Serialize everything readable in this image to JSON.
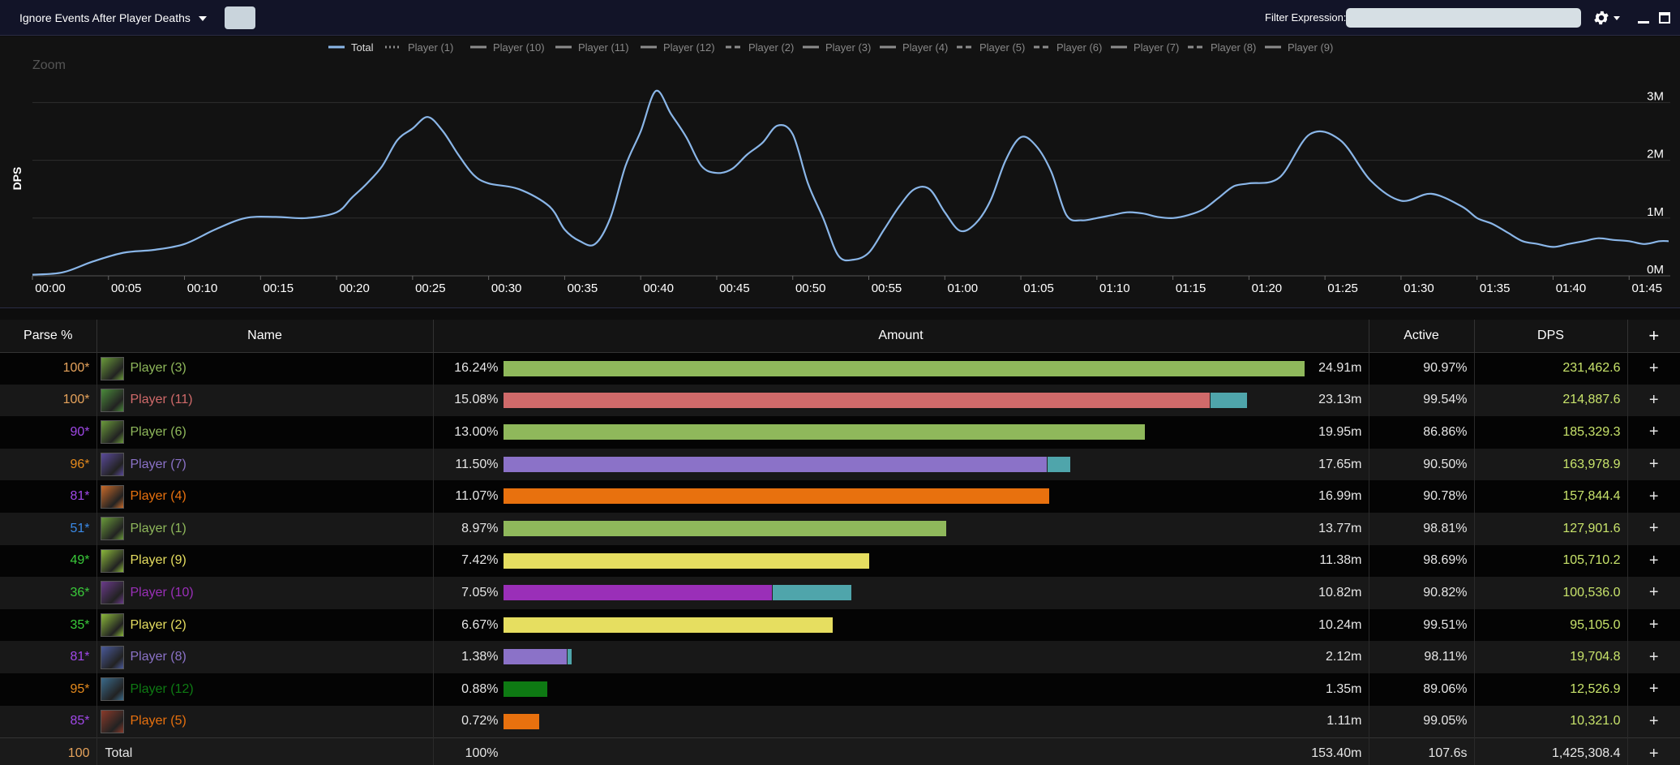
{
  "toolbar": {
    "ignore_label": "Ignore Events After Player Deaths",
    "filter_label": "Filter Expression:",
    "filter_value": ""
  },
  "colors": {
    "hunter": "#8fb85b",
    "deathknight": "#d06a6a",
    "warlock": "#8b72c8",
    "rogue": "#e6de60",
    "druid": "#e8710e",
    "demonhunter": "#9a2fb8",
    "monk": "#0e7a13",
    "pet": "#4fa5ab",
    "total_line": "#8ab6e8",
    "legend_gray": "#8c8c8c"
  },
  "chart_data": {
    "type": "line",
    "ylabel": "DPS",
    "zoom_label": "Zoom",
    "legend": [
      "Total",
      "Player (1)",
      "Player (10)",
      "Player (11)",
      "Player (12)",
      "Player (2)",
      "Player (3)",
      "Player (4)",
      "Player (5)",
      "Player (6)",
      "Player (7)",
      "Player (8)",
      "Player (9)"
    ],
    "x_ticks": [
      "00:00",
      "00:05",
      "00:10",
      "00:15",
      "00:20",
      "00:25",
      "00:30",
      "00:35",
      "00:40",
      "00:45",
      "00:50",
      "00:55",
      "01:00",
      "01:05",
      "01:10",
      "01:15",
      "01:20",
      "01:25",
      "01:30",
      "01:35",
      "01:40",
      "01:45"
    ],
    "y_ticks": [
      "0M",
      "1M",
      "2M",
      "3M"
    ],
    "ylim": [
      0,
      3.3
    ],
    "xlim": [
      0,
      107.6
    ],
    "series": [
      {
        "name": "Total",
        "x": [
          0,
          2,
          4,
          6,
          8,
          10,
          12,
          14,
          16,
          18,
          20,
          21,
          22,
          23,
          24,
          25,
          26,
          27,
          28,
          29,
          30,
          32,
          34,
          35,
          36,
          37,
          38,
          39,
          40,
          41,
          42,
          43,
          44,
          45,
          46,
          47,
          48,
          49,
          50,
          51,
          52,
          53,
          54,
          55,
          56,
          57,
          58,
          59,
          60,
          61,
          62,
          63,
          64,
          65,
          66,
          67,
          68,
          69,
          70,
          71,
          72,
          73,
          74,
          75,
          76,
          77,
          78,
          79,
          80,
          82,
          84,
          86,
          88,
          90,
          92,
          94,
          95,
          96,
          97,
          98,
          99,
          100,
          101,
          102,
          103,
          104,
          105,
          106,
          107,
          107.6
        ],
        "values": [
          0.02,
          0.06,
          0.25,
          0.4,
          0.45,
          0.55,
          0.8,
          1.0,
          1.02,
          1.0,
          1.1,
          1.35,
          1.6,
          1.9,
          2.35,
          2.55,
          2.75,
          2.5,
          2.1,
          1.75,
          1.6,
          1.5,
          1.2,
          0.8,
          0.6,
          0.55,
          1.0,
          1.9,
          2.5,
          3.2,
          2.8,
          2.4,
          1.9,
          1.78,
          1.85,
          2.1,
          2.3,
          2.6,
          2.45,
          1.6,
          1.0,
          0.35,
          0.28,
          0.4,
          0.8,
          1.2,
          1.5,
          1.5,
          1.1,
          0.78,
          0.9,
          1.3,
          2.0,
          2.4,
          2.25,
          1.8,
          1.05,
          0.96,
          1.0,
          1.05,
          1.1,
          1.08,
          1.02,
          1.0,
          1.05,
          1.15,
          1.35,
          1.55,
          1.6,
          1.7,
          2.45,
          2.35,
          1.65,
          1.3,
          1.42,
          1.2,
          1.0,
          0.9,
          0.75,
          0.6,
          0.55,
          0.5,
          0.55,
          0.6,
          0.65,
          0.62,
          0.6,
          0.55,
          0.6,
          0.6
        ]
      }
    ]
  },
  "table": {
    "headers": {
      "parse": "Parse %",
      "name": "Name",
      "amount": "Amount",
      "active": "Active",
      "dps": "DPS",
      "plus": "+"
    },
    "rows": [
      {
        "parse": "100*",
        "parse_color": "#e5a25b",
        "name": "Player (3)",
        "name_color": "#8fb85b",
        "icon": "hunter-spec-icon",
        "icon_color": "#6a9a3a",
        "pct": "16.24%",
        "main_frac": 0.1624,
        "pet_frac": 0,
        "bar_color": "#8fb85b",
        "amount": "24.91m",
        "active": "90.97%",
        "dps": "231,462.6"
      },
      {
        "parse": "100*",
        "parse_color": "#e5a25b",
        "name": "Player (11)",
        "name_color": "#d06a6a",
        "icon": "deathknight-spec-icon",
        "icon_color": "#4a8a3a",
        "pct": "15.08%",
        "main_frac": 0.1432,
        "pet_frac": 0.0076,
        "bar_color": "#d06a6a",
        "amount": "23.13m",
        "active": "99.54%",
        "dps": "214,887.6"
      },
      {
        "parse": "90*",
        "parse_color": "#a048e8",
        "name": "Player (6)",
        "name_color": "#8fb85b",
        "icon": "hunter-spec-icon",
        "icon_color": "#6a9a3a",
        "pct": "13.00%",
        "main_frac": 0.13,
        "pet_frac": 0,
        "bar_color": "#8fb85b",
        "amount": "19.95m",
        "active": "86.86%",
        "dps": "185,329.3"
      },
      {
        "parse": "96*",
        "parse_color": "#e58a1d",
        "name": "Player (7)",
        "name_color": "#8b72c8",
        "icon": "warlock-spec-icon",
        "icon_color": "#5a4a9a",
        "pct": "11.50%",
        "main_frac": 0.1102,
        "pet_frac": 0.0048,
        "bar_color": "#8b72c8",
        "amount": "17.65m",
        "active": "90.50%",
        "dps": "163,978.9"
      },
      {
        "parse": "81*",
        "parse_color": "#a048e8",
        "name": "Player (4)",
        "name_color": "#e8710e",
        "icon": "druid-spec-icon",
        "icon_color": "#c86a2a",
        "pct": "11.07%",
        "main_frac": 0.1107,
        "pet_frac": 0,
        "bar_color": "#e8710e",
        "amount": "16.99m",
        "active": "90.78%",
        "dps": "157,844.4"
      },
      {
        "parse": "51*",
        "parse_color": "#3a8ae8",
        "name": "Player (1)",
        "name_color": "#8fb85b",
        "icon": "hunter-spec-icon",
        "icon_color": "#6a9a3a",
        "pct": "8.97%",
        "main_frac": 0.0897,
        "pet_frac": 0,
        "bar_color": "#8fb85b",
        "amount": "13.77m",
        "active": "98.81%",
        "dps": "127,901.6"
      },
      {
        "parse": "49*",
        "parse_color": "#3acb3a",
        "name": "Player (9)",
        "name_color": "#e6de60",
        "icon": "rogue-spec-icon",
        "icon_color": "#8ab83a",
        "pct": "7.42%",
        "main_frac": 0.0742,
        "pet_frac": 0,
        "bar_color": "#e6de60",
        "amount": "11.38m",
        "active": "98.69%",
        "dps": "105,710.2"
      },
      {
        "parse": "36*",
        "parse_color": "#3acb3a",
        "name": "Player (10)",
        "name_color": "#9a2fb8",
        "icon": "demonhunter-spec-icon",
        "icon_color": "#6a3a8a",
        "pct": "7.05%",
        "main_frac": 0.0544,
        "pet_frac": 0.0161,
        "bar_color": "#9a2fb8",
        "amount": "10.82m",
        "active": "90.82%",
        "dps": "100,536.0"
      },
      {
        "parse": "35*",
        "parse_color": "#3acb3a",
        "name": "Player (2)",
        "name_color": "#e6de60",
        "icon": "rogue-spec-icon",
        "icon_color": "#8ab83a",
        "pct": "6.67%",
        "main_frac": 0.0667,
        "pet_frac": 0,
        "bar_color": "#e6de60",
        "amount": "10.24m",
        "active": "99.51%",
        "dps": "95,105.0"
      },
      {
        "parse": "81*",
        "parse_color": "#a048e8",
        "name": "Player (8)",
        "name_color": "#8b72c8",
        "icon": "warlock-spec-icon",
        "icon_color": "#4a5a9a",
        "pct": "1.38%",
        "main_frac": 0.0128,
        "pet_frac": 0.001,
        "bar_color": "#8b72c8",
        "amount": "2.12m",
        "active": "98.11%",
        "dps": "19,704.8"
      },
      {
        "parse": "95*",
        "parse_color": "#e58a1d",
        "name": "Player (12)",
        "name_color": "#0e7a13",
        "icon": "monk-spec-icon",
        "icon_color": "#3a6a8a",
        "pct": "0.88%",
        "main_frac": 0.0088,
        "pet_frac": 0,
        "bar_color": "#0e7a13",
        "amount": "1.35m",
        "active": "89.06%",
        "dps": "12,526.9"
      },
      {
        "parse": "85*",
        "parse_color": "#a048e8",
        "name": "Player (5)",
        "name_color": "#e8710e",
        "icon": "druid-spec-icon",
        "icon_color": "#8a3a2a",
        "pct": "0.72%",
        "main_frac": 0.0072,
        "pet_frac": 0,
        "bar_color": "#e8710e",
        "amount": "1.11m",
        "active": "99.05%",
        "dps": "10,321.0"
      }
    ],
    "total": {
      "parse": "100",
      "parse_color": "#e5a25b",
      "name": "Total",
      "pct": "100%",
      "amount": "153.40m",
      "active": "107.6s",
      "dps": "1,425,308.4"
    },
    "plus_label": "+"
  }
}
